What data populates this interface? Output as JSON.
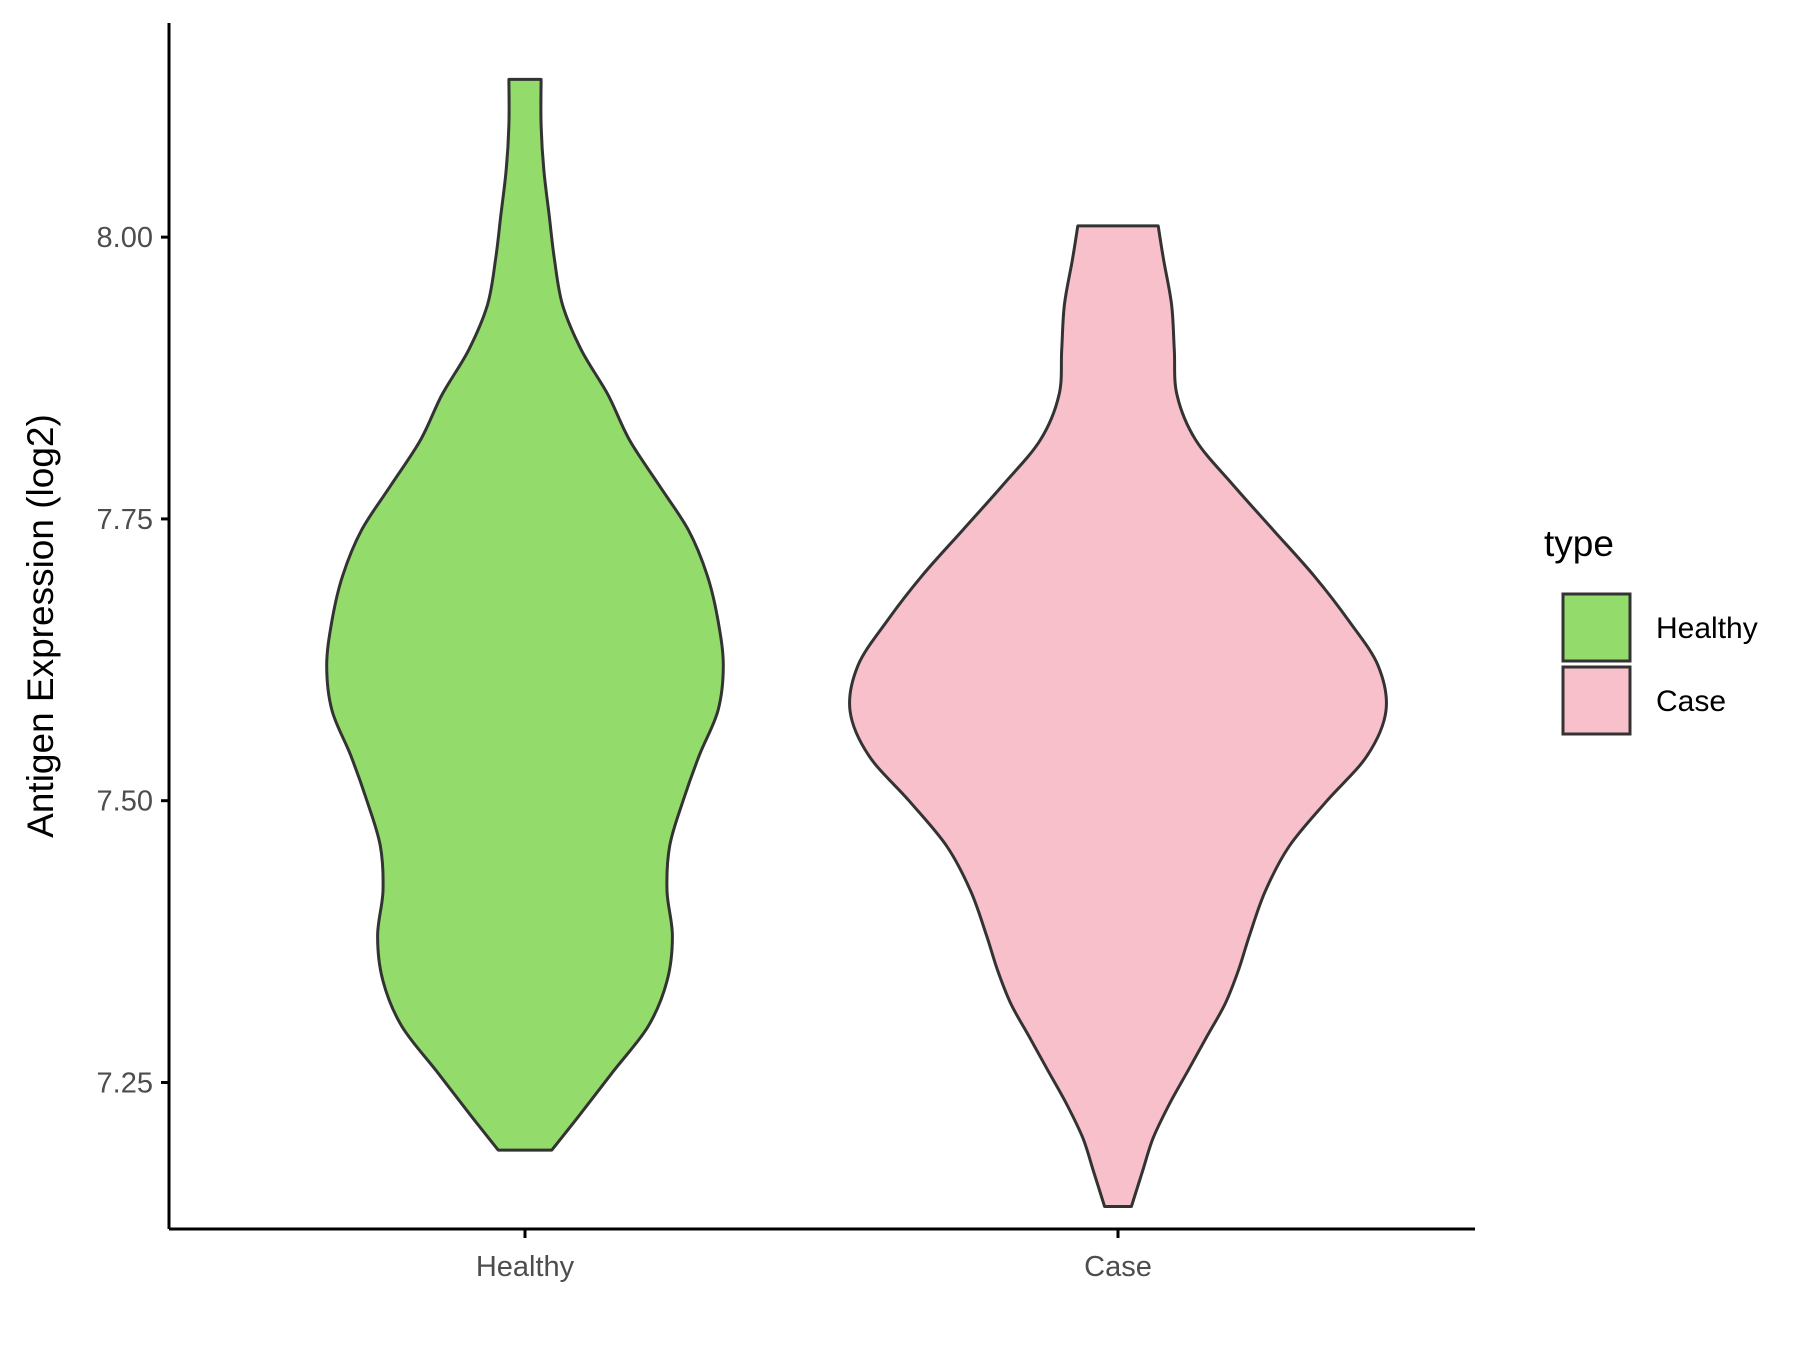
{
  "chart_data": {
    "type": "violin",
    "ylabel": "Antigen Expression (log2)",
    "xlabel": "",
    "categories": [
      "Healthy",
      "Case"
    ],
    "ylim": [
      7.12,
      8.19
    ],
    "yticks": [
      7.25,
      7.5,
      7.75,
      8.0
    ],
    "ytick_labels": [
      "7.25",
      "7.50",
      "7.75",
      "8.00"
    ],
    "grid": false,
    "legend": {
      "title": "type",
      "placement": "right",
      "entries": [
        {
          "label": "Healthy",
          "color": "#93DC6C"
        },
        {
          "label": "Case",
          "color": "#F8C0CB"
        }
      ]
    },
    "series": [
      {
        "category": "Healthy",
        "color": "#93DC6C",
        "min": 7.19,
        "max": 8.14,
        "profile": [
          [
            7.19,
            0.1
          ],
          [
            7.22,
            0.2
          ],
          [
            7.26,
            0.33
          ],
          [
            7.3,
            0.46
          ],
          [
            7.34,
            0.53
          ],
          [
            7.38,
            0.55
          ],
          [
            7.42,
            0.53
          ],
          [
            7.46,
            0.54
          ],
          [
            7.5,
            0.59
          ],
          [
            7.54,
            0.65
          ],
          [
            7.58,
            0.72
          ],
          [
            7.62,
            0.74
          ],
          [
            7.66,
            0.72
          ],
          [
            7.7,
            0.68
          ],
          [
            7.74,
            0.61
          ],
          [
            7.78,
            0.5
          ],
          [
            7.82,
            0.39
          ],
          [
            7.86,
            0.31
          ],
          [
            7.9,
            0.21
          ],
          [
            7.94,
            0.14
          ],
          [
            7.98,
            0.11
          ],
          [
            8.02,
            0.09
          ],
          [
            8.06,
            0.07
          ],
          [
            8.1,
            0.06
          ],
          [
            8.14,
            0.06
          ]
        ]
      },
      {
        "category": "Case",
        "color": "#F8C0CB",
        "min": 7.14,
        "max": 8.01,
        "profile": [
          [
            7.14,
            0.05
          ],
          [
            7.17,
            0.09
          ],
          [
            7.2,
            0.13
          ],
          [
            7.23,
            0.19
          ],
          [
            7.26,
            0.26
          ],
          [
            7.29,
            0.33
          ],
          [
            7.32,
            0.4
          ],
          [
            7.35,
            0.45
          ],
          [
            7.38,
            0.49
          ],
          [
            7.42,
            0.55
          ],
          [
            7.46,
            0.64
          ],
          [
            7.5,
            0.78
          ],
          [
            7.54,
            0.93
          ],
          [
            7.58,
            1.0
          ],
          [
            7.62,
            0.97
          ],
          [
            7.66,
            0.86
          ],
          [
            7.7,
            0.73
          ],
          [
            7.74,
            0.58
          ],
          [
            7.78,
            0.43
          ],
          [
            7.82,
            0.29
          ],
          [
            7.86,
            0.22
          ],
          [
            7.9,
            0.21
          ],
          [
            7.94,
            0.2
          ],
          [
            7.98,
            0.17
          ],
          [
            8.01,
            0.15
          ]
        ]
      }
    ]
  }
}
